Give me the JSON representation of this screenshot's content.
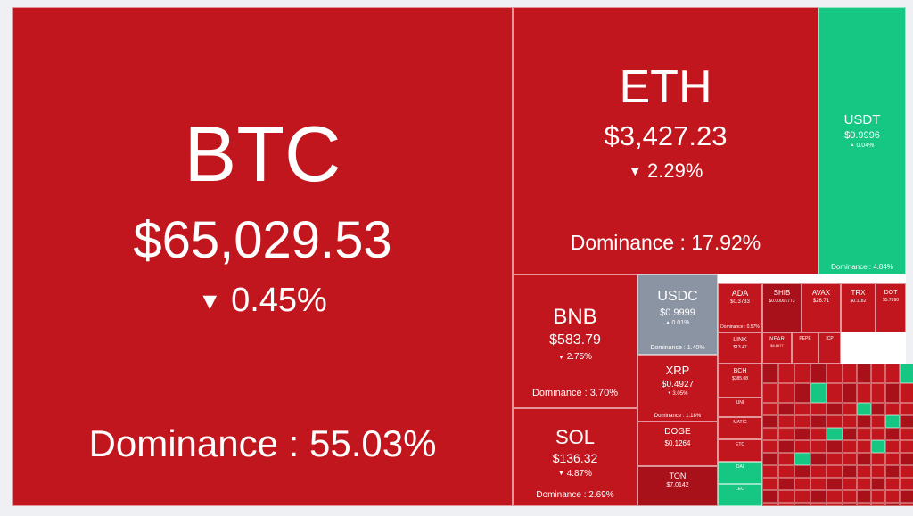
{
  "colors": {
    "down": "#c1161d",
    "down_dark": "#a8101a",
    "up": "#16c784",
    "neutral": "#8b94a3",
    "text": "#ffffff"
  },
  "dominance_label": "Dominance",
  "chart_data": {
    "type": "heatmap",
    "title": "",
    "items": [
      {
        "symbol": "BTC",
        "price": "$65,029.53",
        "change": "0.45%",
        "direction": "down",
        "dominance": "55.03%"
      },
      {
        "symbol": "ETH",
        "price": "$3,427.23",
        "change": "2.29%",
        "direction": "down",
        "dominance": "17.92%"
      },
      {
        "symbol": "USDT",
        "price": "$0.9996",
        "change": "0.04%",
        "direction": "up",
        "dominance": "4.84%"
      },
      {
        "symbol": "BNB",
        "price": "$583.79",
        "change": "2.75%",
        "direction": "down",
        "dominance": "3.70%"
      },
      {
        "symbol": "SOL",
        "price": "$136.32",
        "change": "4.87%",
        "direction": "down",
        "dominance": "2.69%"
      },
      {
        "symbol": "USDC",
        "price": "$0.9999",
        "change": "0.01%",
        "direction": "up",
        "dominance": "1.40%"
      },
      {
        "symbol": "XRP",
        "price": "$0.4927",
        "change": "3.05%",
        "direction": "down",
        "dominance": "1.18%"
      },
      {
        "symbol": "DOGE",
        "price": "$0.1264",
        "change": "",
        "direction": "down",
        "dominance": ""
      },
      {
        "symbol": "TON",
        "price": "$7.0142",
        "change": "",
        "direction": "down",
        "dominance": ""
      },
      {
        "symbol": "ADA",
        "price": "$0.3733",
        "change": "",
        "direction": "down",
        "dominance": "0.57%"
      },
      {
        "symbol": "SHIB",
        "price": "$0.00001773",
        "change": "",
        "direction": "down",
        "dominance": ""
      },
      {
        "symbol": "AVAX",
        "price": "$26.71",
        "change": "",
        "direction": "down",
        "dominance": ""
      },
      {
        "symbol": "TRX",
        "price": "$0.1182",
        "change": "",
        "direction": "down",
        "dominance": ""
      },
      {
        "symbol": "DOT",
        "price": "$5.7690",
        "change": "",
        "direction": "down",
        "dominance": ""
      },
      {
        "symbol": "LINK",
        "price": "$13.47",
        "change": "",
        "direction": "down",
        "dominance": ""
      },
      {
        "symbol": "NEAR",
        "price": "$4.8677",
        "change": "",
        "direction": "down",
        "dominance": ""
      },
      {
        "symbol": "PEPE",
        "price": "",
        "change": "",
        "direction": "down",
        "dominance": ""
      },
      {
        "symbol": "ICP",
        "price": "",
        "change": "",
        "direction": "down",
        "dominance": ""
      },
      {
        "symbol": "BCH",
        "price": "$385.08",
        "change": "",
        "direction": "down",
        "dominance": ""
      },
      {
        "symbol": "UNI",
        "price": "",
        "change": "",
        "direction": "down",
        "dominance": ""
      },
      {
        "symbol": "MATIC",
        "price": "",
        "change": "",
        "direction": "down",
        "dominance": ""
      },
      {
        "symbol": "ETC",
        "price": "",
        "change": "",
        "direction": "down",
        "dominance": ""
      },
      {
        "symbol": "DAI",
        "price": "",
        "change": "",
        "direction": "up",
        "dominance": ""
      },
      {
        "symbol": "LEO",
        "price": "",
        "change": "",
        "direction": "up",
        "dominance": ""
      }
    ]
  }
}
